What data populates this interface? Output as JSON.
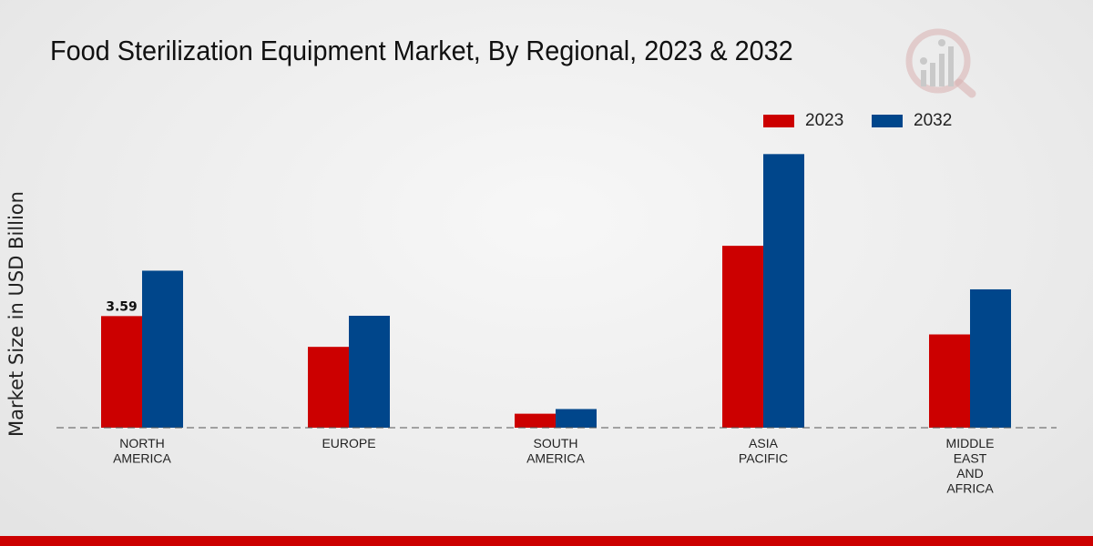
{
  "chart_data": {
    "type": "bar",
    "title": "Food Sterilization Equipment Market, By Regional, 2023 & 2032",
    "ylabel": "Market Size in USD Billion",
    "xlabel": "",
    "categories": [
      "NORTH\nAMERICA",
      "EUROPE",
      "SOUTH\nAMERICA",
      "ASIA\nPACIFIC",
      "MIDDLE\nEAST\nAND\nAFRICA"
    ],
    "series": [
      {
        "name": "2023",
        "color": "#cc0000",
        "values": [
          3.59,
          2.6,
          0.45,
          5.85,
          3.0
        ]
      },
      {
        "name": "2032",
        "color": "#00468b",
        "values": [
          5.05,
          3.6,
          0.6,
          8.8,
          4.45
        ]
      }
    ],
    "data_labels": [
      {
        "series": 0,
        "index": 0,
        "text": "3.59"
      }
    ],
    "ylim": [
      0,
      12
    ],
    "grid": false,
    "legend_position": "top-right"
  }
}
